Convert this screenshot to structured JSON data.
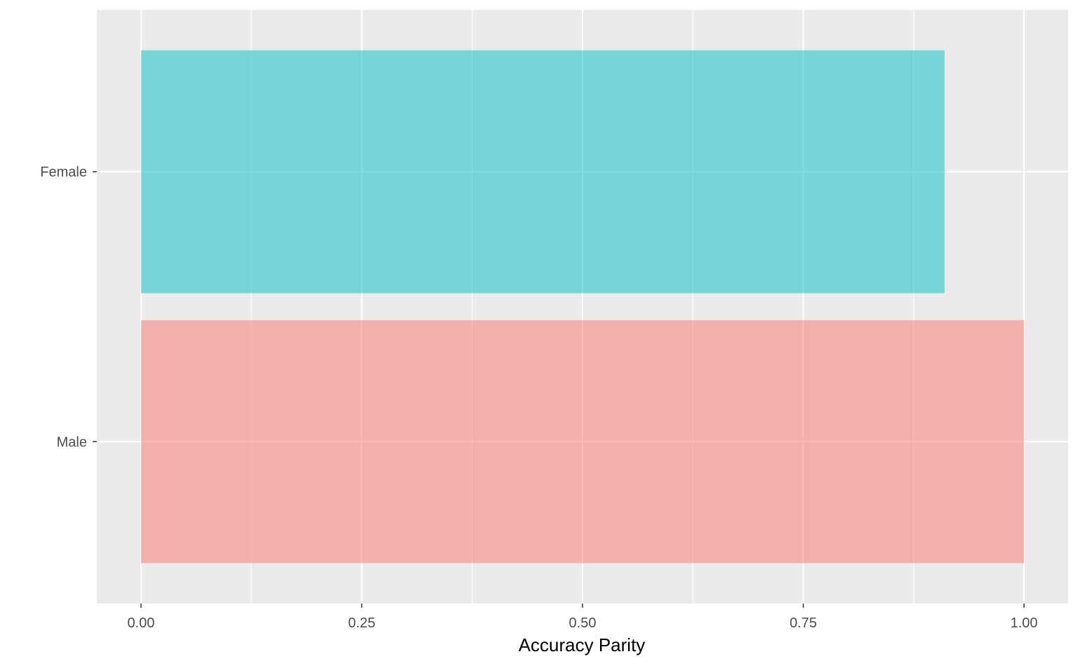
{
  "chart_data": {
    "type": "bar",
    "orientation": "horizontal",
    "categories": [
      "Male",
      "Female"
    ],
    "values": [
      1.0,
      0.91
    ],
    "colors": [
      "#F8766D",
      "#00BFC4"
    ],
    "bar_opacity": 0.5,
    "xlabel": "Accuracy Parity",
    "ylabel": "",
    "xlim": [
      -0.05,
      1.05
    ],
    "xticks": [
      {
        "value": 0.0,
        "label": "0.00"
      },
      {
        "value": 0.25,
        "label": "0.25"
      },
      {
        "value": 0.5,
        "label": "0.50"
      },
      {
        "value": 0.75,
        "label": "0.75"
      },
      {
        "value": 1.0,
        "label": "1.00"
      }
    ],
    "minor_xticks": [
      0.125,
      0.375,
      0.625,
      0.875
    ],
    "grid": true,
    "panel_background": "#EBEBEB",
    "grid_color": "#FFFFFF",
    "legend": "none"
  }
}
